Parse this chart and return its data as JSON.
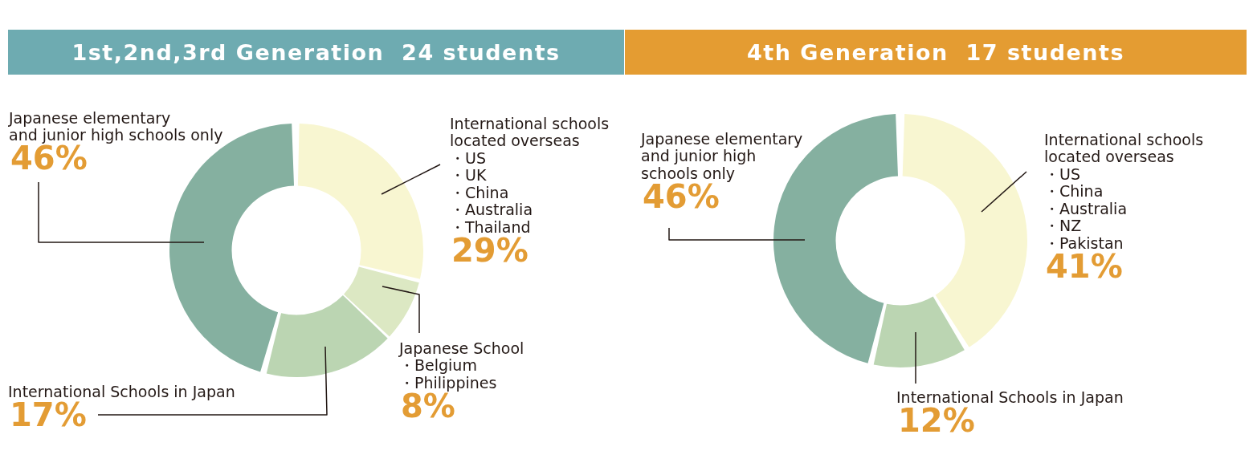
{
  "chart_data": [
    {
      "type": "donut",
      "title": "1st,2nd,3rd Generation  24 students",
      "categories": [
        "International schools\nlocated overseas\n・US\n・UK\n・China\n・Australia\n・Thailand",
        "Japanese School\n・Belgium\n・Philippines",
        "International Schools in Japan",
        "Japanese elementary\nand junior high schools only"
      ],
      "values": [
        29,
        8,
        17,
        46
      ],
      "value_labels": [
        "29%",
        "8%",
        "17%",
        "46%"
      ],
      "colors": [
        "#f8f6d1",
        "#dce8c3",
        "#bbd5b2",
        "#85b0a0"
      ]
    },
    {
      "type": "donut",
      "title": "4th Generation  17 students",
      "categories": [
        "International schools\nlocated overseas\n・US\n・China\n・Australia\n・NZ\n・Pakistan",
        "International Schools in Japan",
        "Japanese elementary\nand junior high\nschools only"
      ],
      "values": [
        41,
        12,
        46
      ],
      "value_labels": [
        "41%",
        "12%",
        "46%"
      ],
      "colors": [
        "#f8f6d1",
        "#bbd5b2",
        "#85b0a0"
      ]
    }
  ]
}
